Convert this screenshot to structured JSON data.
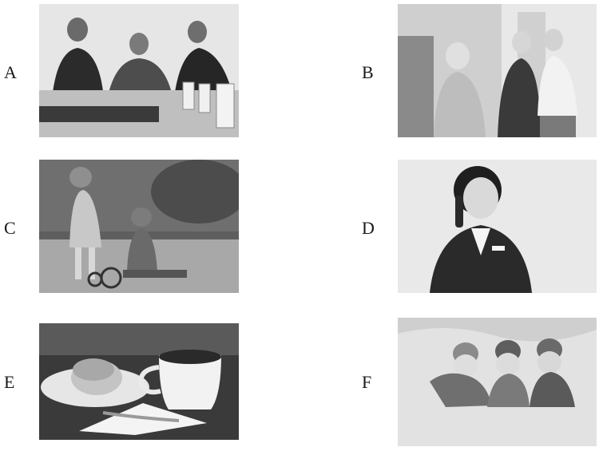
{
  "options": [
    {
      "letter": "A",
      "scene": "business-meeting"
    },
    {
      "letter": "B",
      "scene": "elderly-people-greeting"
    },
    {
      "letter": "C",
      "scene": "children-with-tricycle"
    },
    {
      "letter": "D",
      "scene": "receptionist-on-phone"
    },
    {
      "letter": "E",
      "scene": "coffee-and-muffin"
    },
    {
      "letter": "F",
      "scene": "children-in-snow"
    }
  ]
}
